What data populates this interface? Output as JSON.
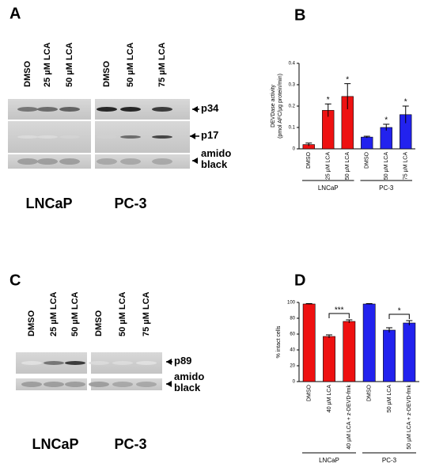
{
  "blots": [
    {
      "panel": "A",
      "lanes": [
        "DMSO",
        "25 µM LCA",
        "50 µM LCA",
        "DMSO",
        "50 µM LCA",
        "75 µM LCA"
      ],
      "bands": [
        "p34",
        "p17",
        "amido black"
      ],
      "groups": [
        "LNCaP",
        "PC-3"
      ]
    },
    {
      "panel": "C",
      "lanes": [
        "DMSO",
        "25 µM LCA",
        "50 µM LCA",
        "DMSO",
        "50 µM LCA",
        "75 µM LCA"
      ],
      "bands": [
        "p89",
        "amido black"
      ],
      "groups": [
        "LNCaP",
        "PC-3"
      ]
    }
  ],
  "chart_data": [
    {
      "type": "bar",
      "panel": "B",
      "ylabel": [
        "DEVDase activity",
        "(pmol AFC/µg protein/min)"
      ],
      "categories": [
        "DMSO",
        "25 µM LCA",
        "50 µM LCA",
        "DMSO",
        "50 µM LCA",
        "75 µM LCA"
      ],
      "values": [
        0.02,
        0.18,
        0.245,
        0.055,
        0.1,
        0.16
      ],
      "errors": [
        0.007,
        0.03,
        0.06,
        0.004,
        0.015,
        0.04
      ],
      "colors": [
        "#ee1111",
        "#ee1111",
        "#ee1111",
        "#2222ee",
        "#2222ee",
        "#2222ee"
      ],
      "ylim": [
        0,
        0.4
      ],
      "yticks": [
        0,
        0.1,
        0.2,
        0.3,
        0.4
      ],
      "groups": [
        "LNCaP",
        "PC-3"
      ],
      "annotations": [
        "*",
        "*",
        "*",
        "*"
      ]
    },
    {
      "type": "bar",
      "panel": "D",
      "ylabel": [
        "% intact cells"
      ],
      "categories": [
        "DMSO",
        "40 µM LCA",
        "40 µM LCA + z-DEVD-fmk",
        "DMSO",
        "50 µM LCA",
        "50 µM LCA + z-DEVD-fmk"
      ],
      "values": [
        98,
        57,
        76,
        98,
        65,
        74
      ],
      "errors": [
        0.5,
        2,
        2,
        0.5,
        3,
        3
      ],
      "colors": [
        "#ee1111",
        "#ee1111",
        "#ee1111",
        "#2222ee",
        "#2222ee",
        "#2222ee"
      ],
      "ylim": [
        0,
        100
      ],
      "yticks": [
        0,
        20,
        40,
        60,
        80,
        100
      ],
      "groups": [
        "LNCaP",
        "PC-3"
      ],
      "annotations": [
        "***",
        "*"
      ]
    }
  ]
}
